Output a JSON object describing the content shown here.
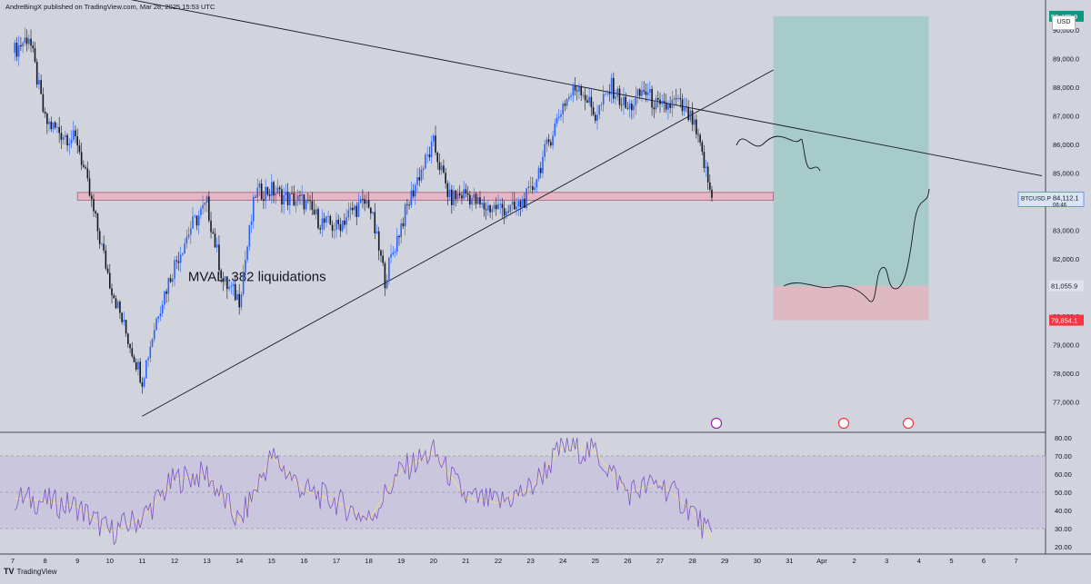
{
  "header": {
    "publisher": "AndreBingX published on TradingView.com, Mar 28, 2025 15:53 UTC"
  },
  "footer": {
    "logo": "TV",
    "brand": "TradingView"
  },
  "currency": "USD",
  "colors": {
    "background": "#d1d4dc",
    "candle_up": "#2962ff",
    "candle_down": "#131722",
    "zone_fill": "#e8b4c4",
    "zone_border": "#9c4f6a",
    "target_fill": "#9fc9c6",
    "stop_fill": "#e0b4bc",
    "rsi_line": "#7e57c2",
    "rsi_ma": "#f0d898",
    "rsi_band": "#c7c2dd",
    "price_label_green": "#089981",
    "price_label_red": "#f23645"
  },
  "chart_data": [
    {
      "type": "candlestick",
      "symbol": "BTCUSD.P",
      "countdown": "06:46",
      "ylim": [
        76000,
        90600
      ],
      "y_ticks": [
        "90,000.0",
        "89,000.0",
        "88,000.0",
        "87,000.0",
        "86,000.0",
        "85,000.0",
        "84,000.0",
        "83,000.0",
        "82,000.0",
        "81,000.0",
        "80,000.0",
        "79,000.0",
        "78,000.0",
        "77,000.0"
      ],
      "x_ticks": [
        "7",
        "8",
        "9",
        "10",
        "11",
        "12",
        "13",
        "14",
        "15",
        "16",
        "17",
        "18",
        "19",
        "20",
        "21",
        "22",
        "23",
        "24",
        "25",
        "26",
        "27",
        "28",
        "29",
        "30",
        "31",
        "Apr",
        "2",
        "3",
        "4",
        "5",
        "6",
        "7"
      ],
      "close_path": [
        [
          "7",
          89200
        ],
        [
          "7.5",
          89800
        ],
        [
          "8",
          86800
        ],
        [
          "8.5",
          86400
        ],
        [
          "9",
          86100
        ],
        [
          "9.5",
          83600
        ],
        [
          "10",
          81200
        ],
        [
          "10.5",
          79400
        ],
        [
          "11",
          77800
        ],
        [
          "11.5",
          80200
        ],
        [
          "12",
          81800
        ],
        [
          "12.5",
          83100
        ],
        [
          "13",
          83900
        ],
        [
          "13.5",
          81200
        ],
        [
          "14",
          80600
        ],
        [
          "14.5",
          84300
        ],
        [
          "15",
          84400
        ],
        [
          "15.5",
          84100
        ],
        [
          "16",
          84000
        ],
        [
          "16.5",
          83300
        ],
        [
          "17",
          83100
        ],
        [
          "17.5",
          83700
        ],
        [
          "18",
          84000
        ],
        [
          "18.5",
          81300
        ],
        [
          "19",
          83200
        ],
        [
          "19.5",
          84800
        ],
        [
          "20",
          86000
        ],
        [
          "20.5",
          84100
        ],
        [
          "21",
          84300
        ],
        [
          "21.5",
          83800
        ],
        [
          "22",
          83800
        ],
        [
          "22.5",
          83700
        ],
        [
          "23",
          84300
        ],
        [
          "23.5",
          85900
        ],
        [
          "24",
          87400
        ],
        [
          "24.5",
          88100
        ],
        [
          "25",
          87000
        ],
        [
          "25.5",
          88000
        ],
        [
          "26",
          87200
        ],
        [
          "26.5",
          87900
        ],
        [
          "27",
          87200
        ],
        [
          "27.5",
          87500
        ],
        [
          "28",
          86800
        ],
        [
          "28.3",
          85600
        ],
        [
          "28.6",
          84100
        ]
      ],
      "last_price": "84,112.1",
      "levels": [
        {
          "label": "90,475.9",
          "value": 90475.9,
          "color": "green"
        },
        {
          "label": "81,055.9",
          "value": 81055.9,
          "color": "neutral"
        },
        {
          "label": "79,854.1",
          "value": 79854.1,
          "color": "red"
        }
      ],
      "zones": [
        {
          "from_x": "9",
          "to_x": "30.5",
          "low": 84050,
          "high": 84320
        },
        {
          "from_x": "18.4",
          "to_x": "3.7",
          "low": 80900,
          "high": 81150,
          "annotation": "MVAL .382 liquidations"
        },
        {
          "from_x": "24.5",
          "to_x": "3.6",
          "low": 83850,
          "high": 83920
        }
      ],
      "position": {
        "from_x": "30.5",
        "to_x": "Apr+3.3",
        "entry": 81055.9,
        "target": 90475.9,
        "stop": 79854.1
      },
      "trendlines": [
        {
          "from": [
            "11",
            76500
          ],
          "to": [
            "30.5",
            88600
          ]
        },
        {
          "from": [
            "10",
            91200
          ],
          "to": [
            "Apr+6.8",
            84900
          ]
        }
      ]
    },
    {
      "type": "line",
      "name": "RSI",
      "ylim": [
        18,
        82
      ],
      "y_ticks": [
        "80.00",
        "70.00",
        "60.00",
        "50.00",
        "40.00",
        "30.00",
        "20.00"
      ],
      "bands": [
        30,
        70
      ],
      "series_path": [
        [
          "7",
          47
        ],
        [
          "8",
          45
        ],
        [
          "9",
          42
        ],
        [
          "10",
          28
        ],
        [
          "11",
          36
        ],
        [
          "12",
          57
        ],
        [
          "13",
          60
        ],
        [
          "14",
          33
        ],
        [
          "15",
          70
        ],
        [
          "16",
          51
        ],
        [
          "17",
          45
        ],
        [
          "18",
          35
        ],
        [
          "19",
          62
        ],
        [
          "20",
          72
        ],
        [
          "21",
          47
        ],
        [
          "22",
          44
        ],
        [
          "23",
          52
        ],
        [
          "24",
          75
        ],
        [
          "25",
          72
        ],
        [
          "26",
          50
        ],
        [
          "27",
          55
        ],
        [
          "28",
          40
        ],
        [
          "28.6",
          24
        ]
      ]
    }
  ]
}
